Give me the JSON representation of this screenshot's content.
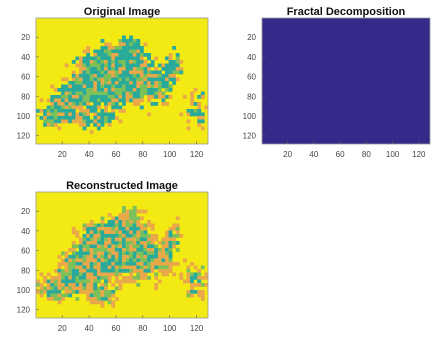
{
  "chart_data": [
    {
      "type": "heatmap",
      "title": "Original Image",
      "xlim": [
        0.5,
        128.5
      ],
      "ylim": [
        0.5,
        128.5
      ],
      "xticks": [
        20,
        40,
        60,
        80,
        100,
        120
      ],
      "yticks": [
        20,
        40,
        60,
        80,
        100,
        120
      ],
      "colors": {
        "background": "#f2ea12",
        "teal": "#2aaa9a",
        "orange": "#e9a84a",
        "green": "#7cc05a"
      }
    },
    {
      "type": "heatmap",
      "title": "Fractal Decomposition",
      "xlim": [
        0.5,
        128.5
      ],
      "ylim": [
        0.5,
        128.5
      ],
      "xticks": [
        20,
        40,
        60,
        80,
        100,
        120
      ],
      "yticks": [
        20,
        40,
        60,
        80,
        100,
        120
      ],
      "fill": "#342a8a"
    },
    {
      "type": "heatmap",
      "title": "Reconstructed Image",
      "xlim": [
        0.5,
        128.5
      ],
      "ylim": [
        0.5,
        128.5
      ],
      "xticks": [
        20,
        40,
        60,
        80,
        100,
        120
      ],
      "yticks": [
        20,
        40,
        60,
        80,
        100,
        120
      ],
      "colors": {
        "background": "#f2ea12",
        "teal": "#2aaa9a",
        "orange": "#e9a84a",
        "green": "#7cc05a"
      }
    }
  ]
}
